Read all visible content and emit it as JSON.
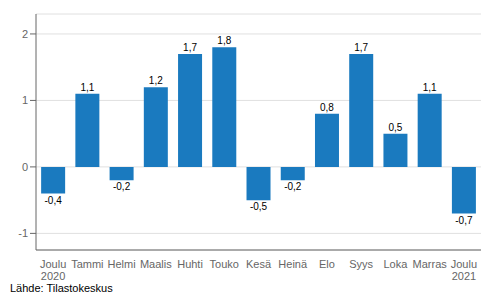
{
  "chart_data": {
    "type": "bar",
    "categories": [
      "Joulu\n2020",
      "Tammi",
      "Helmi",
      "Maalis",
      "Huhti",
      "Touko",
      "Kesä",
      "Heinä",
      "Elo",
      "Syys",
      "Loka",
      "Marras",
      "Joulu\n2021"
    ],
    "values": [
      -0.4,
      1.1,
      -0.2,
      1.2,
      1.7,
      1.8,
      -0.5,
      -0.2,
      0.8,
      1.7,
      0.5,
      1.1,
      -0.7
    ],
    "value_labels": [
      "-0,4",
      "1,1",
      "-0,2",
      "1,2",
      "1,7",
      "1,8",
      "-0,5",
      "-0,2",
      "0,8",
      "1,7",
      "0,5",
      "1,1",
      "-0,7"
    ],
    "data_labels": true,
    "color": "#1a7abf",
    "ylim": [
      -1.25,
      2.3
    ],
    "yticks": [
      -1,
      0,
      1,
      2
    ],
    "grid": true,
    "source": "Lähde: Tilastokeskus"
  }
}
